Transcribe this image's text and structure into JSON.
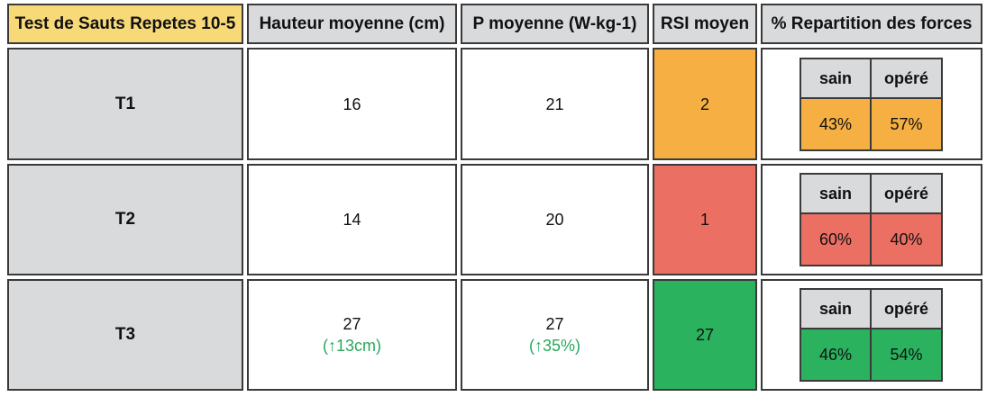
{
  "table": {
    "headers": [
      "Test de Sauts Repetes 10-5",
      "Hauteur moyenne (cm)",
      "P moyenne (W-kg-1)",
      "RSI moyen",
      "% Repartition des forces"
    ],
    "split_headers": [
      "sain",
      "opéré"
    ],
    "rows": [
      {
        "label": "T1",
        "hauteur": "16",
        "hauteur_delta": "",
        "puissance": "21",
        "puissance_delta": "",
        "rsi": "2",
        "sain": "43%",
        "opere": "57%"
      },
      {
        "label": "T2",
        "hauteur": "14",
        "hauteur_delta": "",
        "puissance": "20",
        "puissance_delta": "",
        "rsi": "1",
        "sain": "60%",
        "opere": "40%"
      },
      {
        "label": "T3",
        "hauteur": "27",
        "hauteur_delta": "(↑13cm)",
        "puissance": "27",
        "puissance_delta": "(↑35%)",
        "rsi": "27",
        "sain": "46%",
        "opere": "54%"
      }
    ]
  },
  "colors": {
    "header_first": "#f7d978",
    "header": "#d9dadc",
    "orange": "#f5af42",
    "red": "#ec6f63",
    "green": "#2ab25e",
    "delta_green": "#2aa85c"
  }
}
